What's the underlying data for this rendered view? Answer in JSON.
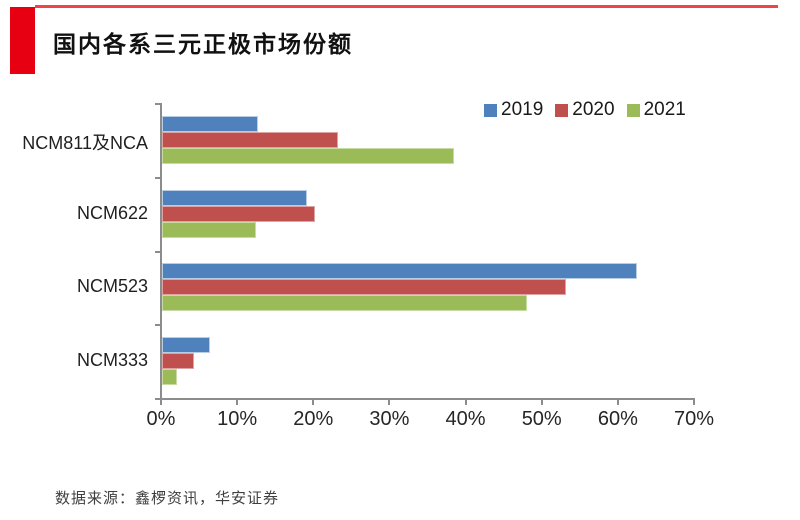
{
  "header": {
    "title": "国内各系三元正极市场份额"
  },
  "footer": {
    "source": "数据来源：鑫椤资讯，华安证券"
  },
  "colors": {
    "accent_block_red": "#e60012",
    "top_rule_red": "#ef4448",
    "axis_gray": "#8c8c8c",
    "series_blue": "#4f81bd",
    "series_red": "#c0504d",
    "series_green": "#9bbb59"
  },
  "chart_data": {
    "type": "bar",
    "orientation": "horizontal",
    "title": "国内各系三元正极市场份额",
    "categories": [
      "NCM811及NCA",
      "NCM622",
      "NCM523",
      "NCM333"
    ],
    "series": [
      {
        "name": "2019",
        "color": "#4f81bd",
        "border": "#b9cde5",
        "values": [
          12.6,
          19.1,
          62.4,
          6.3
        ]
      },
      {
        "name": "2020",
        "color": "#c0504d",
        "border": "#dca5a3",
        "values": [
          23.1,
          20.1,
          53.0,
          4.2
        ]
      },
      {
        "name": "2021",
        "color": "#9bbb59",
        "border": "#c9dba4",
        "values": [
          38.4,
          12.4,
          47.9,
          2.0
        ]
      }
    ],
    "xlim": [
      0,
      70
    ],
    "x_ticks": [
      0,
      10,
      20,
      30,
      40,
      50,
      60,
      70
    ],
    "x_tick_labels": [
      "0%",
      "10%",
      "20%",
      "30%",
      "40%",
      "50%",
      "60%",
      "70%"
    ],
    "xlabel": "",
    "ylabel": "",
    "legend_position": "top-right",
    "grid": false
  }
}
